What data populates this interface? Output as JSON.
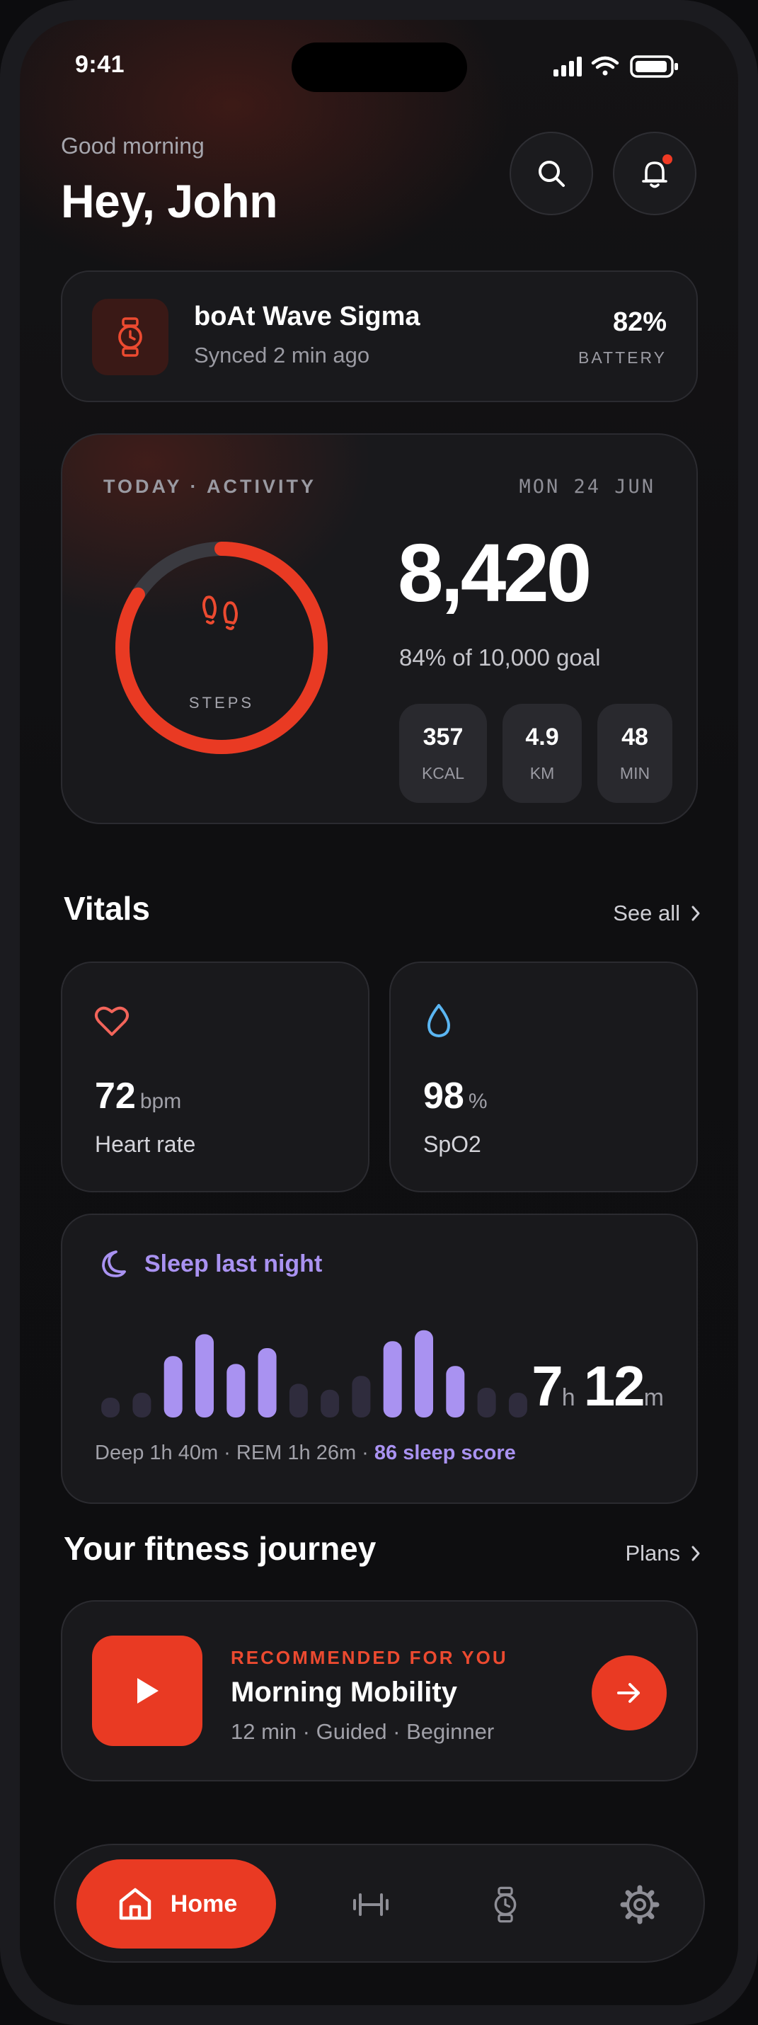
{
  "status_bar": {
    "time": "9:41"
  },
  "header": {
    "greeting": "Good morning",
    "name": "Hey, John"
  },
  "device": {
    "name": "boAt Wave Sigma",
    "sync_status": "Synced 2 min ago",
    "battery_value": "82%",
    "battery_label": "BATTERY"
  },
  "activity": {
    "label": "TODAY · ACTIVITY",
    "date": "MON 24 JUN",
    "steps": "8,420",
    "steps_caption": "STEPS",
    "goal_text": "84% of 10,000 goal",
    "progress": 0.84,
    "stats": [
      {
        "value": "357",
        "unit": "KCAL"
      },
      {
        "value": "4.9",
        "unit": "KM"
      },
      {
        "value": "48",
        "unit": "MIN"
      }
    ]
  },
  "vitals": {
    "title": "Vitals",
    "see_all": "See all",
    "heart": {
      "value": "72",
      "unit": "bpm",
      "label": "Heart rate"
    },
    "spo2": {
      "value": "98",
      "unit": "%",
      "label": "SpO2"
    }
  },
  "sleep": {
    "title": "Sleep last night",
    "hours": "7",
    "hours_unit": "h",
    "minutes": "12",
    "minutes_unit": "m",
    "summary": "Deep 1h 40m · REM 1h 26m · ",
    "score": "86 sleep score",
    "bars": [
      {
        "level": 0.2,
        "phase": "light"
      },
      {
        "level": 0.25,
        "phase": "light"
      },
      {
        "level": 0.62,
        "phase": "deep"
      },
      {
        "level": 0.84,
        "phase": "deep"
      },
      {
        "level": 0.54,
        "phase": "deep"
      },
      {
        "level": 0.7,
        "phase": "deep"
      },
      {
        "level": 0.34,
        "phase": "light"
      },
      {
        "level": 0.28,
        "phase": "light"
      },
      {
        "level": 0.42,
        "phase": "light"
      },
      {
        "level": 0.77,
        "phase": "deep"
      },
      {
        "level": 0.88,
        "phase": "deep"
      },
      {
        "level": 0.52,
        "phase": "deep"
      },
      {
        "level": 0.3,
        "phase": "light"
      },
      {
        "level": 0.25,
        "phase": "light"
      }
    ]
  },
  "journey": {
    "title": "Your fitness journey",
    "plans_link": "Plans",
    "recommendation_label": "RECOMMENDED FOR YOU",
    "workout_name": "Morning Mobility",
    "workout_meta": "12 min · Guided · Beginner"
  },
  "nav": {
    "home_label": "Home"
  },
  "colors": {
    "accent": "#e93a23",
    "sleep": "#a992f1",
    "spo2": "#5bb6f2",
    "heart": "#f2645a",
    "ring_track": "#3a3a40"
  },
  "icons": [
    "search-icon",
    "bell-icon",
    "watch-icon",
    "footsteps-icon",
    "heart-icon",
    "droplet-icon",
    "moon-icon",
    "chevron-right-icon",
    "play-icon",
    "arrow-right-icon",
    "home-icon",
    "dumbbell-icon",
    "settings-icon"
  ]
}
